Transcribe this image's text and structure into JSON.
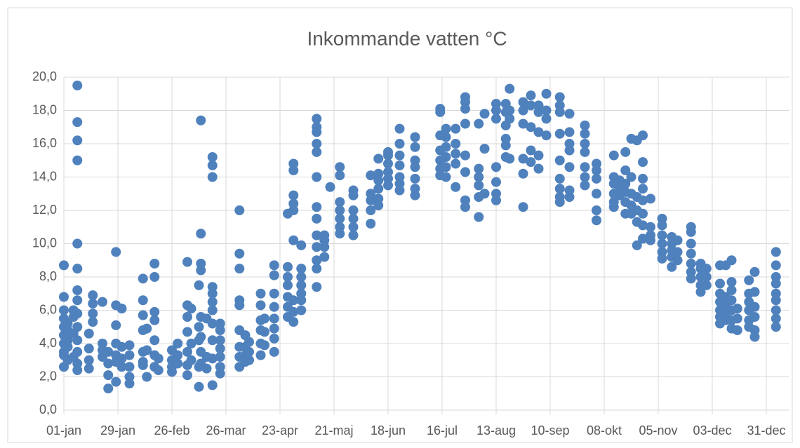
{
  "chart_data": {
    "type": "scatter",
    "title": "Inkommande vatten °C",
    "color": "#4f81bd",
    "grid": true,
    "xlim": [
      0,
      376
    ],
    "xticks": [
      {
        "value": 0,
        "label": "01-jan"
      },
      {
        "value": 28,
        "label": "29-jan"
      },
      {
        "value": 56,
        "label": "26-feb"
      },
      {
        "value": 84,
        "label": "26-mar"
      },
      {
        "value": 112,
        "label": "23-apr"
      },
      {
        "value": 140,
        "label": "21-maj"
      },
      {
        "value": 168,
        "label": "18-jun"
      },
      {
        "value": 196,
        "label": "16-jul"
      },
      {
        "value": 224,
        "label": "13-aug"
      },
      {
        "value": 252,
        "label": "10-sep"
      },
      {
        "value": 280,
        "label": "08-okt"
      },
      {
        "value": 308,
        "label": "05-nov"
      },
      {
        "value": 336,
        "label": "03-dec"
      },
      {
        "value": 364,
        "label": "31-dec"
      }
    ],
    "ylim": [
      0,
      20
    ],
    "yticks": [
      {
        "value": 0,
        "label": "0,0"
      },
      {
        "value": 2,
        "label": "2,0"
      },
      {
        "value": 4,
        "label": "4,0"
      },
      {
        "value": 6,
        "label": "6,0"
      },
      {
        "value": 8,
        "label": "8,0"
      },
      {
        "value": 10,
        "label": "10,0"
      },
      {
        "value": 12,
        "label": "12,0"
      },
      {
        "value": 14,
        "label": "14,0"
      },
      {
        "value": 16,
        "label": "16,0"
      },
      {
        "value": 18,
        "label": "18,0"
      },
      {
        "value": 20,
        "label": "20,0"
      }
    ],
    "x": [
      0,
      0,
      0,
      0,
      0,
      0,
      0,
      0,
      0,
      0,
      2,
      2,
      2,
      2,
      2,
      5,
      5,
      5,
      5,
      7,
      7,
      7,
      7,
      7,
      7,
      7,
      7,
      7,
      7,
      7,
      7,
      7,
      7,
      13,
      13,
      13,
      13,
      15,
      15,
      15,
      15,
      20,
      20,
      20,
      20,
      23,
      23,
      23,
      23,
      27,
      27,
      27,
      27,
      27,
      27,
      27,
      30,
      30,
      30,
      30,
      34,
      34,
      34,
      34,
      34,
      41,
      41,
      41,
      41,
      41,
      41,
      41,
      43,
      43,
      43,
      47,
      47,
      47,
      47,
      47,
      47,
      47,
      49,
      49,
      56,
      56,
      56,
      56,
      59,
      59,
      59,
      64,
      64,
      64,
      64,
      64,
      64,
      64,
      66,
      66,
      66,
      70,
      70,
      70,
      70,
      70,
      71,
      71,
      71,
      71,
      71,
      71,
      71,
      71,
      74,
      74,
      74,
      77,
      77,
      77,
      77,
      77,
      77,
      77,
      77,
      77,
      77,
      77,
      81,
      81,
      81,
      81,
      81,
      81,
      81,
      91,
      91,
      91,
      91,
      91,
      91,
      91,
      91,
      91,
      94,
      94,
      94,
      94,
      96,
      96,
      96,
      102,
      102,
      102,
      102,
      102,
      102,
      104,
      104,
      104,
      109,
      109,
      109,
      109,
      109,
      109,
      109,
      109,
      116,
      116,
      116,
      116,
      116,
      116,
      116,
      119,
      119,
      119,
      119,
      119,
      119,
      119,
      119,
      119,
      123,
      123,
      123,
      123,
      123,
      123,
      123,
      131,
      131,
      131,
      131,
      131,
      131,
      131,
      131,
      131,
      131,
      131,
      131,
      131,
      135,
      135,
      135,
      135,
      138,
      143,
      143,
      143,
      143,
      143,
      143,
      143,
      150,
      150,
      150,
      150,
      150,
      150,
      159,
      159,
      159,
      159,
      159,
      163,
      163,
      163,
      163,
      163,
      163,
      168,
      168,
      168,
      168,
      168,
      168,
      174,
      174,
      174,
      174,
      174,
      174,
      174,
      182,
      182,
      182,
      182,
      182,
      182,
      182,
      195,
      195,
      195,
      195,
      195,
      195,
      195,
      198,
      198,
      198,
      198,
      198,
      198,
      203,
      203,
      203,
      203,
      203,
      208,
      208,
      208,
      208,
      208,
      208,
      208,
      208,
      215,
      215,
      215,
      215,
      215,
      215,
      218,
      218,
      218,
      224,
      224,
      224,
      224,
      224,
      224,
      224,
      229,
      229,
      229,
      229,
      229,
      229,
      231,
      231,
      231,
      231,
      238,
      238,
      238,
      238,
      238,
      238,
      242,
      242,
      242,
      242,
      242,
      246,
      246,
      246,
      246,
      246,
      250,
      250,
      250,
      250,
      257,
      257,
      257,
      257,
      257,
      257,
      257,
      257,
      257,
      262,
      262,
      262,
      262,
      262,
      262,
      262,
      270,
      270,
      270,
      270,
      270,
      270,
      270,
      276,
      276,
      276,
      276,
      276,
      276,
      285,
      285,
      285,
      285,
      285,
      285,
      288,
      288,
      288,
      291,
      291,
      291,
      291,
      291,
      291,
      294,
      294,
      294,
      294,
      294,
      297,
      297,
      297,
      297,
      297,
      300,
      300,
      300,
      300,
      300,
      300,
      300,
      300,
      304,
      304,
      304,
      304,
      310,
      310,
      310,
      310,
      310,
      310,
      315,
      315,
      315,
      315,
      315,
      318,
      318,
      318,
      325,
      325,
      325,
      325,
      325,
      325,
      325,
      330,
      330,
      330,
      330,
      330,
      333,
      333,
      333,
      340,
      340,
      340,
      340,
      340,
      340,
      340,
      343,
      343,
      343,
      343,
      343,
      346,
      346,
      346,
      346,
      346,
      346,
      346,
      349,
      349,
      349,
      355,
      355,
      355,
      355,
      355,
      355,
      358,
      358,
      358,
      358,
      358,
      358,
      369,
      369,
      369,
      369,
      369,
      369,
      369,
      369,
      369
    ],
    "values": [
      8.7,
      6.8,
      6.0,
      5.5,
      5.0,
      4.5,
      4.0,
      3.5,
      3.3,
      2.6,
      5.2,
      4.8,
      4.2,
      3.8,
      3.0,
      6.0,
      5.6,
      4.6,
      3.2,
      19.5,
      17.3,
      16.2,
      15.0,
      10.0,
      8.5,
      7.2,
      6.6,
      5.8,
      5.0,
      4.2,
      3.5,
      2.8,
      2.4,
      4.6,
      3.7,
      3.0,
      2.5,
      6.9,
      6.4,
      5.8,
      5.3,
      6.5,
      4.0,
      3.6,
      3.2,
      1.3,
      2.1,
      2.8,
      3.5,
      9.5,
      6.3,
      5.1,
      4.0,
      3.3,
      2.9,
      1.7,
      6.1,
      3.8,
      3.1,
      2.6,
      3.9,
      3.3,
      2.6,
      2.0,
      1.6,
      7.9,
      6.6,
      5.7,
      4.8,
      3.5,
      2.9,
      2.7,
      4.9,
      3.6,
      2.0,
      8.8,
      8.0,
      5.9,
      5.4,
      4.2,
      3.3,
      2.6,
      3.1,
      2.4,
      3.6,
      3.0,
      2.6,
      2.3,
      4.0,
      3.3,
      2.8,
      8.9,
      6.3,
      5.6,
      4.7,
      3.5,
      2.7,
      2.1,
      6.1,
      4.0,
      3.0,
      7.5,
      5.0,
      4.2,
      2.6,
      1.4,
      17.4,
      10.6,
      8.8,
      8.4,
      5.6,
      4.4,
      3.5,
      2.8,
      5.5,
      3.2,
      2.5,
      15.2,
      14.7,
      14.0,
      7.4,
      7.0,
      6.5,
      6.0,
      5.2,
      4.2,
      3.1,
      1.5,
      5.2,
      4.8,
      4.2,
      3.7,
      3.2,
      2.6,
      2.2,
      12.0,
      9.4,
      8.5,
      6.6,
      6.3,
      4.8,
      3.8,
      3.2,
      2.6,
      4.5,
      3.8,
      3.3,
      2.9,
      4.1,
      3.5,
      3.0,
      7.0,
      6.3,
      5.4,
      4.8,
      4.0,
      3.3,
      5.5,
      4.7,
      3.9,
      8.7,
      8.1,
      7.0,
      6.2,
      5.5,
      4.9,
      4.3,
      3.5,
      11.8,
      8.6,
      8.0,
      7.5,
      6.8,
      6.2,
      5.6,
      14.8,
      14.4,
      12.9,
      12.4,
      12.0,
      10.2,
      6.6,
      5.9,
      5.3,
      9.9,
      8.5,
      8.0,
      7.5,
      7.0,
      6.6,
      6.0,
      17.5,
      17.0,
      16.7,
      16.0,
      15.5,
      14.0,
      12.2,
      11.5,
      10.5,
      9.8,
      9.0,
      8.5,
      7.4,
      10.5,
      10.2,
      9.8,
      9.2,
      13.4,
      14.6,
      14.1,
      12.5,
      12.0,
      11.5,
      11.0,
      10.6,
      13.2,
      12.9,
      12.0,
      11.5,
      11.0,
      10.5,
      14.1,
      13.0,
      12.6,
      12.0,
      11.2,
      15.1,
      14.2,
      13.8,
      13.3,
      12.7,
      12.3,
      15.5,
      15.3,
      14.8,
      14.3,
      13.9,
      13.5,
      16.9,
      16.0,
      15.3,
      14.7,
      14.0,
      13.6,
      13.2,
      16.4,
      15.8,
      15.0,
      14.6,
      13.9,
      13.3,
      12.9,
      18.1,
      17.9,
      16.5,
      15.6,
      15.0,
      14.5,
      14.1,
      16.9,
      16.4,
      15.8,
      15.2,
      14.6,
      14.0,
      16.9,
      16.0,
      15.4,
      14.8,
      13.4,
      18.8,
      18.5,
      18.1,
      17.2,
      15.3,
      14.3,
      12.6,
      12.2,
      17.2,
      14.5,
      14.0,
      13.5,
      12.8,
      11.6,
      17.8,
      15.7,
      13.0,
      18.4,
      18.0,
      17.5,
      14.6,
      13.7,
      13.0,
      12.6,
      18.4,
      17.9,
      17.1,
      16.3,
      15.9,
      15.2,
      19.3,
      18.0,
      17.5,
      15.1,
      18.5,
      18.0,
      17.2,
      15.1,
      14.2,
      12.2,
      18.9,
      18.3,
      17.0,
      15.6,
      14.9,
      18.3,
      17.9,
      16.7,
      15.3,
      14.5,
      19.0,
      18.0,
      17.5,
      16.5,
      18.8,
      18.3,
      17.9,
      16.6,
      15.0,
      13.9,
      13.3,
      12.8,
      12.5,
      17.8,
      16.7,
      16.0,
      15.6,
      14.6,
      13.2,
      12.8,
      17.1,
      16.6,
      16.0,
      15.5,
      14.6,
      14.0,
      13.5,
      14.8,
      14.4,
      13.9,
      13.0,
      12.0,
      11.4,
      15.3,
      14.0,
      13.6,
      13.0,
      12.5,
      12.2,
      13.8,
      13.4,
      12.9,
      15.5,
      14.4,
      13.6,
      13.1,
      12.5,
      11.8,
      16.3,
      14.0,
      13.0,
      12.3,
      11.8,
      16.2,
      12.8,
      12.0,
      11.3,
      9.9,
      16.5,
      14.9,
      13.9,
      13.3,
      12.6,
      11.8,
      11.1,
      10.3,
      12.7,
      11.0,
      10.5,
      10.2,
      11.5,
      11.1,
      10.5,
      10.0,
      9.5,
      9.1,
      10.4,
      10.0,
      9.6,
      9.2,
      8.6,
      10.2,
      9.5,
      9.0,
      11.0,
      10.7,
      10.0,
      9.4,
      8.8,
      8.3,
      7.9,
      8.8,
      8.5,
      8.0,
      7.5,
      7.1,
      8.5,
      8.0,
      7.5,
      8.7,
      7.6,
      7.0,
      6.5,
      6.0,
      5.6,
      5.2,
      8.7,
      6.8,
      6.3,
      5.8,
      5.4,
      9.0,
      7.7,
      7.2,
      6.6,
      6.0,
      5.4,
      4.9,
      6.1,
      5.5,
      4.8,
      7.8,
      7.0,
      6.5,
      6.0,
      5.4,
      5.0,
      8.3,
      7.1,
      6.2,
      5.6,
      4.8,
      4.4,
      9.5,
      8.7,
      8.0,
      7.6,
      7.0,
      6.6,
      6.0,
      5.5,
      5.0
    ]
  }
}
